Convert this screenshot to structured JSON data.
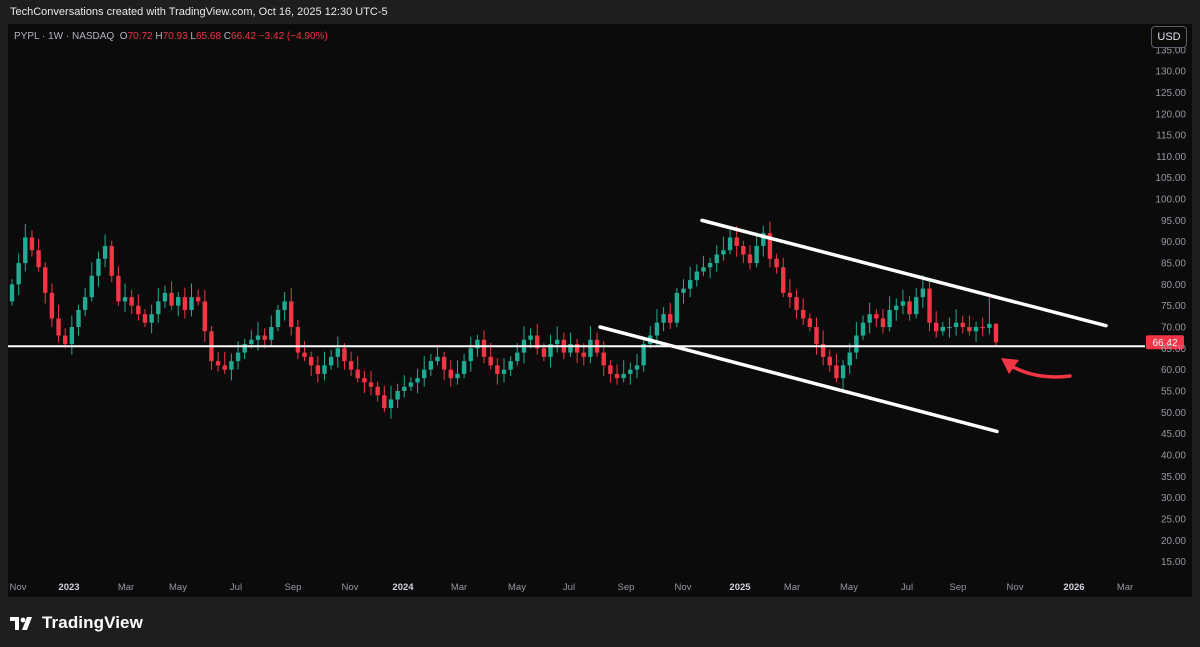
{
  "attribution": "TechConversations created with TradingView.com, Oct 16, 2025 12:30 UTC-5",
  "legend": {
    "symbol": "PYPL · 1W · NASDAQ",
    "open_label": "O",
    "open": "70.72",
    "high_label": "H",
    "high": "70.93",
    "low_label": "L",
    "low": "65.68",
    "close_label": "C",
    "close": "66.42",
    "change": "−3.42 (−4.90%)"
  },
  "currency_button": "USD",
  "brand": {
    "name": "TradingView",
    "icon": "tradingview-logo-icon"
  },
  "colors": {
    "up": "#22ab94",
    "down": "#f23645",
    "background": "#0b0b0b",
    "trendline": "#ffffff",
    "arrow": "#f23645"
  },
  "chart_data": {
    "type": "candlestick",
    "interval": "1W",
    "y_axis": {
      "ticks": [
        "15.00",
        "20.00",
        "25.00",
        "30.00",
        "35.00",
        "40.00",
        "45.00",
        "50.00",
        "55.00",
        "60.00",
        "65.00",
        "70.00",
        "75.00",
        "80.00",
        "85.00",
        "90.00",
        "95.00",
        "100.00",
        "105.00",
        "110.00",
        "115.00",
        "120.00",
        "125.00",
        "130.00",
        "135.00"
      ],
      "range": [
        12,
        137
      ],
      "side": "right"
    },
    "x_axis": {
      "labels": [
        "Nov",
        "2023",
        "Mar",
        "May",
        "Jul",
        "Sep",
        "Nov",
        "2024",
        "Mar",
        "May",
        "Jul",
        "Sep",
        "Nov",
        "2025",
        "Mar",
        "May",
        "Jul",
        "Sep",
        "Nov",
        "2026",
        "Mar"
      ],
      "bold_labels": [
        "2023",
        "2024",
        "2025",
        "2026"
      ]
    },
    "last_price": 66.42,
    "last_price_label": "66.42",
    "horizontal_level": 65.5,
    "closes": [
      80,
      85,
      91,
      88,
      84,
      78,
      72,
      68,
      66,
      70,
      74,
      77,
      82,
      86,
      89,
      82,
      76,
      77,
      75,
      73,
      71,
      73,
      76,
      78,
      75,
      77,
      74,
      77,
      76,
      69,
      62,
      61,
      60,
      62,
      64,
      66,
      67,
      68,
      67,
      70,
      74,
      76,
      70,
      64,
      63,
      61,
      59,
      61,
      63,
      65,
      62,
      60,
      58,
      57,
      56,
      54,
      51,
      53,
      55,
      56,
      57,
      58,
      60,
      62,
      63,
      60,
      58,
      59,
      62,
      65,
      67,
      63,
      61,
      59,
      60,
      62,
      64,
      67,
      68,
      65,
      63,
      66,
      67,
      64,
      66,
      64,
      63,
      67,
      64,
      61,
      59,
      58,
      59,
      60,
      61,
      66,
      68,
      71,
      73,
      71,
      78,
      79,
      81,
      83,
      84,
      85,
      87,
      88,
      91,
      89,
      87,
      85,
      89,
      92,
      86,
      84,
      78,
      77,
      74,
      72,
      70,
      66,
      63,
      61,
      58,
      61,
      64,
      68,
      71,
      73,
      72,
      70,
      74,
      75,
      76,
      73,
      77,
      79,
      71,
      69,
      70,
      70,
      71,
      70,
      69,
      70,
      69.8,
      70.72,
      66.42
    ],
    "annotations": [
      "upper-channel-line",
      "lower-channel-line",
      "horizontal-support-line",
      "red-curved-arrow"
    ]
  }
}
